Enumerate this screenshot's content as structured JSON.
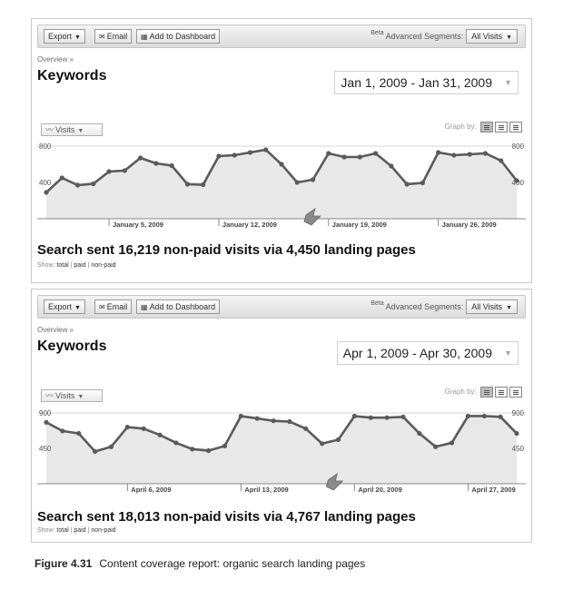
{
  "panels": [
    {
      "toolbar": {
        "export": "Export",
        "email": "Email",
        "dashboard": "Add to Dashboard",
        "beta": "Beta",
        "segments_label": "Advanced Segments:",
        "segment_value": "All Visits"
      },
      "breadcrumb": "Overview »",
      "title": "Keywords",
      "date_range": "Jan 1, 2009 - Jan 31, 2009",
      "metric": "Visits",
      "graph_by": "Graph by:",
      "headline": "Search sent 16,219 non-paid visits via 4,450 landing pages",
      "show": {
        "label": "Show:",
        "total": "total",
        "paid": "paid",
        "nonpaid": "non-paid"
      },
      "chart_data": {
        "type": "area",
        "y_max_label": "800",
        "y_mid_label": "400",
        "ylim": [
          0,
          800
        ],
        "x_tick_labels": [
          "January 5, 2009",
          "January 12, 2009",
          "January 19, 2009",
          "January 26, 2009"
        ],
        "x_tick_index": [
          4,
          11,
          18,
          25
        ],
        "values": [
          290,
          450,
          370,
          385,
          520,
          530,
          670,
          610,
          585,
          380,
          375,
          690,
          700,
          730,
          760,
          600,
          400,
          430,
          720,
          680,
          680,
          720,
          580,
          380,
          395,
          730,
          700,
          710,
          720,
          640,
          420
        ]
      }
    },
    {
      "toolbar": {
        "export": "Export",
        "email": "Email",
        "dashboard": "Add to Dashboard",
        "beta": "Beta",
        "segments_label": "Advanced Segments:",
        "segment_value": "All Visits"
      },
      "breadcrumb": "Overview »",
      "title": "Keywords",
      "date_range": "Apr 1, 2009 - Apr 30, 2009",
      "metric": "Visits",
      "graph_by": "Graph by:",
      "headline": "Search sent 18,013 non-paid visits via 4,767 landing pages",
      "show": {
        "label": "Show:",
        "total": "total",
        "paid": "paid",
        "nonpaid": "non-paid"
      },
      "chart_data": {
        "type": "area",
        "y_max_label": "900",
        "y_mid_label": "450",
        "ylim": [
          0,
          900
        ],
        "x_tick_labels": [
          "April 6, 2009",
          "April 13, 2009",
          "April 20, 2009",
          "April 27, 2009"
        ],
        "x_tick_index": [
          5,
          12,
          19,
          26
        ],
        "values": [
          780,
          670,
          640,
          410,
          470,
          720,
          700,
          620,
          520,
          440,
          420,
          480,
          860,
          830,
          800,
          790,
          700,
          510,
          560,
          860,
          840,
          840,
          850,
          640,
          470,
          520,
          860,
          860,
          850,
          640
        ]
      }
    }
  ],
  "caption": {
    "figure": "Figure 4.31",
    "text": "Content coverage report: organic search landing pages"
  },
  "colors": {
    "line": "#5a5a5a",
    "area": "#e8e8e8",
    "axis": "#888888"
  }
}
